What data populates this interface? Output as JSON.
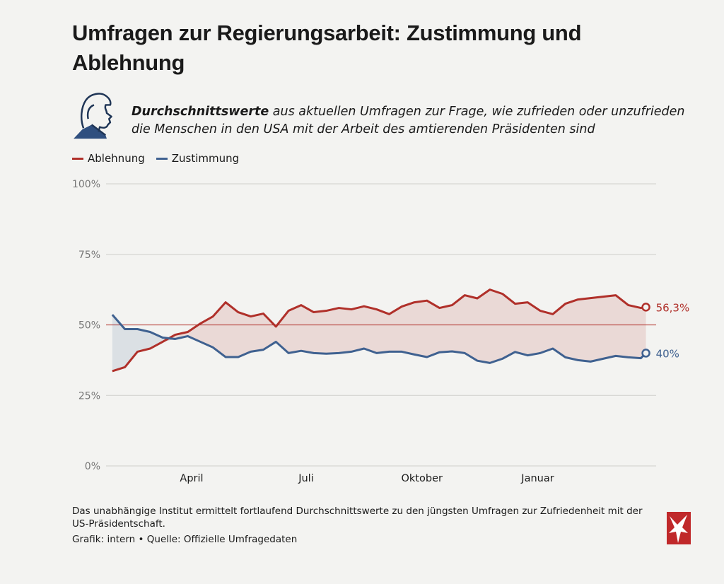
{
  "header": {
    "title": "Umfragen zur Regierungsarbeit: Zustimmung und Ablehnung",
    "subtitle_bold": "Durchschnittswerte",
    "subtitle_rest": " aus aktuellen Umfragen zur Frage, wie zufrieden oder unzufrieden die Menschen in den USA mit der Arbeit des amtierenden Präsidenten sind",
    "icon": "president-profile-icon"
  },
  "footer": {
    "note": "Das unabhängige Institut ermittelt fortlaufend Durchschnittswerte zu den jüngsten Umfragen zur Zufriedenheit mit der US-Präsidentschaft.",
    "source": "Grafik: intern • Quelle: Offizielle Umfragedaten",
    "logo": "stern-logo"
  },
  "colors": {
    "ablehnung": "#b0302a",
    "zustimmung": "#3f6190",
    "background": "#f3f3f1"
  },
  "chart_data": {
    "type": "line",
    "title": "",
    "xlabel": "",
    "ylabel": "",
    "ylim": [
      0,
      100
    ],
    "yticks": [
      "0%",
      "25%",
      "50%",
      "75%",
      "100%"
    ],
    "ytick_values": [
      0,
      25,
      50,
      75,
      100
    ],
    "reference_line": 50,
    "grid": true,
    "legend_position": "top-left",
    "xticks": [
      {
        "label": "April",
        "date": "2025-04-01"
      },
      {
        "label": "Juli",
        "date": "2025-07-01"
      },
      {
        "label": "Oktober",
        "date": "2025-10-01"
      },
      {
        "label": "Januar",
        "date": "2026-01-01"
      }
    ],
    "x": [
      "2025-01-28",
      "2025-02-07",
      "2025-02-17",
      "2025-02-27",
      "2025-03-09",
      "2025-03-19",
      "2025-03-29",
      "2025-04-08",
      "2025-04-18",
      "2025-04-28",
      "2025-05-08",
      "2025-05-18",
      "2025-05-28",
      "2025-06-07",
      "2025-06-17",
      "2025-06-27",
      "2025-07-07",
      "2025-07-17",
      "2025-07-27",
      "2025-08-06",
      "2025-08-16",
      "2025-08-26",
      "2025-09-05",
      "2025-09-15",
      "2025-09-25",
      "2025-10-05",
      "2025-10-15",
      "2025-10-25",
      "2025-11-04",
      "2025-11-14",
      "2025-11-24",
      "2025-12-04",
      "2025-12-14",
      "2025-12-24",
      "2026-01-03",
      "2026-01-13",
      "2026-01-23",
      "2026-02-02",
      "2026-02-12",
      "2026-02-22",
      "2026-03-04",
      "2026-03-14",
      "2026-03-24",
      "2026-03-28"
    ],
    "series": [
      {
        "name": "Ablehnung",
        "color": "#b0302a",
        "end_label": "56,3%",
        "values": [
          33.6,
          35,
          40.5,
          41.6,
          44,
          46.5,
          47.5,
          50.5,
          53,
          58,
          54.5,
          53,
          54,
          49.4,
          55,
          57,
          54.5,
          55,
          56,
          55.5,
          56.6,
          55.5,
          53.8,
          56.5,
          58,
          58.6,
          56,
          57,
          60.5,
          59.4,
          62.5,
          61,
          57.5,
          58,
          55,
          53.8,
          57.5,
          59,
          59.5,
          60,
          60.5,
          57,
          56,
          56.3
        ]
      },
      {
        "name": "Zustimmung",
        "color": "#3f6190",
        "end_label": "40%",
        "values": [
          53.6,
          48.5,
          48.5,
          47.5,
          45.5,
          45,
          46,
          44,
          42,
          38.6,
          38.6,
          40.5,
          41.2,
          44,
          40,
          40.8,
          40,
          39.8,
          40,
          40.5,
          41.6,
          40,
          40.5,
          40.5,
          39.5,
          38.6,
          40.3,
          40.6,
          40,
          37.3,
          36.5,
          38,
          40.4,
          39.2,
          40,
          41.6,
          38.5,
          37.5,
          37,
          38,
          39,
          38.5,
          38.2,
          40
        ]
      }
    ]
  }
}
